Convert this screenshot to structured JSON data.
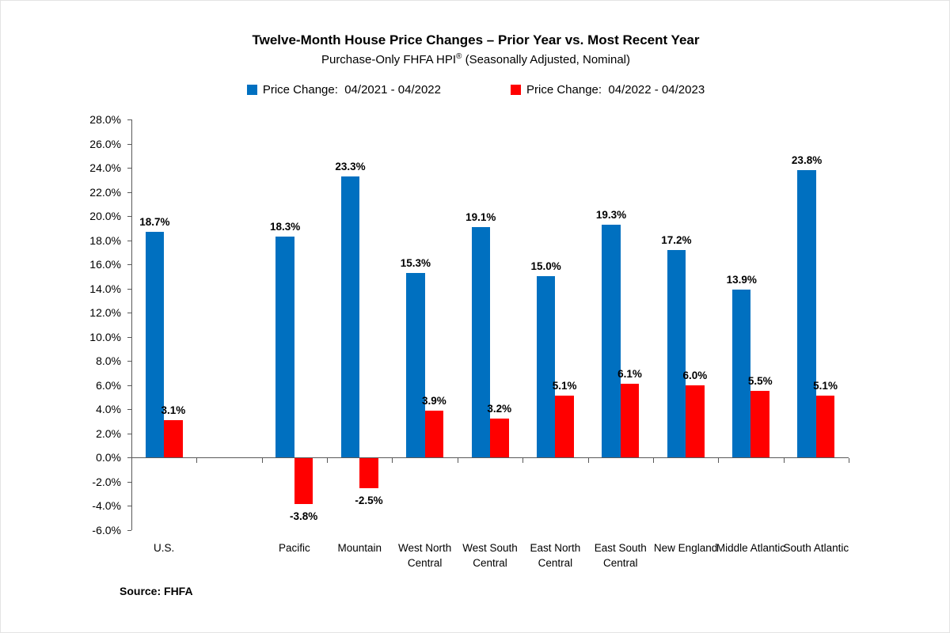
{
  "header": {
    "title": "Twelve-Month House Price Changes – Prior Year vs. Most Recent Year",
    "subtitle_prefix": "Purchase-Only FHFA HPI",
    "subtitle_mark": "®",
    "subtitle_suffix": " (Seasonally Adjusted, Nominal)"
  },
  "legend": {
    "items": [
      {
        "label": "Price Change:  04/2021 - 04/2022",
        "color": "#0070C0"
      },
      {
        "label": "Price Change:  04/2022 - 04/2023",
        "color": "#FF0000"
      }
    ]
  },
  "source_note": "Source: FHFA",
  "colors": {
    "series_blue": "#0070C0",
    "series_red": "#FF0000",
    "axis": "#595959",
    "text": "#000000"
  },
  "chart_data": {
    "type": "bar",
    "title": "Twelve-Month House Price Changes – Prior Year vs. Most Recent Year",
    "subtitle": "Purchase-Only FHFA HPI® (Seasonally Adjusted, Nominal)",
    "xlabel": "",
    "ylabel": "",
    "categories": [
      "U.S.",
      "Pacific",
      "Mountain",
      "West North Central",
      "West South Central",
      "East North Central",
      "East South Central",
      "New England",
      "Middle Atlantic",
      "South Atlantic"
    ],
    "series": [
      {
        "name": "Price Change:  04/2021 - 04/2022",
        "color": "#0070C0",
        "values": [
          18.7,
          18.3,
          23.3,
          15.3,
          19.1,
          15.0,
          19.3,
          17.2,
          13.9,
          23.8
        ]
      },
      {
        "name": "Price Change:  04/2022 - 04/2023",
        "color": "#FF0000",
        "values": [
          3.1,
          -3.8,
          -2.5,
          3.9,
          3.2,
          5.1,
          6.1,
          6.0,
          5.5,
          5.1
        ]
      }
    ],
    "ylim": [
      -6.0,
      28.0
    ],
    "ytick_step": 2.0,
    "ytick_format": "one_decimal_percent",
    "grid": false,
    "data_labels": true,
    "legend_position": "top",
    "layout": {
      "blank_slot_after_first": true
    }
  }
}
